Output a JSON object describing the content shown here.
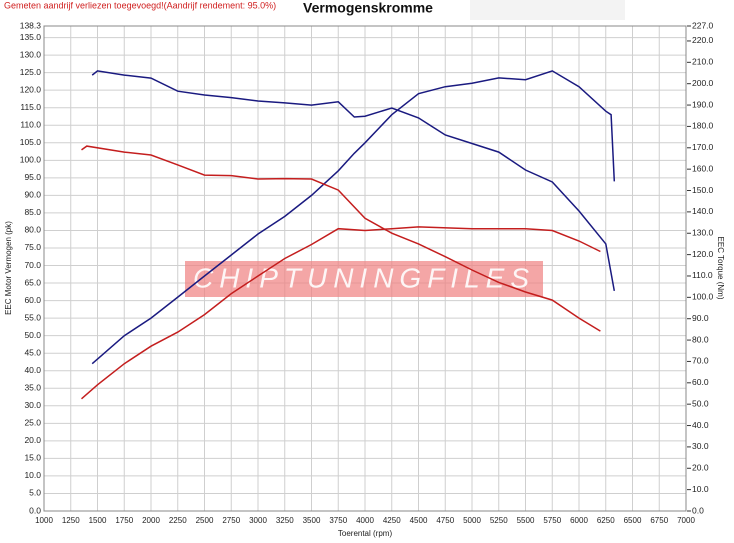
{
  "chart_data": {
    "type": "line",
    "title": "Vermogenskromme",
    "subtitle": "Gemeten aandrijf verliezen toegevoegd!(Aandrijf rendement: 95.0%)",
    "watermark": "CHIPTUNINGFILES",
    "x_label": "Toerental (rpm)",
    "y_label": "EEC Motor Vermogen (pk)",
    "y2_label": "EEC Torque (Nm)",
    "xlim": [
      1000,
      7000
    ],
    "xticks": [
      1000,
      1250,
      1500,
      1750,
      2000,
      2250,
      2500,
      2750,
      3000,
      3250,
      3500,
      3750,
      4000,
      4250,
      4500,
      4750,
      5000,
      5250,
      5500,
      5750,
      6000,
      6250,
      6500,
      6750,
      7000
    ],
    "ylim": [
      0,
      138.3
    ],
    "yticks": [
      {
        "value": 0,
        "label": "0.0"
      },
      {
        "value": 5,
        "label": "5.0"
      },
      {
        "value": 10,
        "label": "10.0"
      },
      {
        "value": 15,
        "label": "15.0"
      },
      {
        "value": 20,
        "label": "20.0"
      },
      {
        "value": 25,
        "label": "25.0"
      },
      {
        "value": 30,
        "label": "30.0"
      },
      {
        "value": 35,
        "label": "35.0"
      },
      {
        "value": 40,
        "label": "40.0"
      },
      {
        "value": 45,
        "label": "45.0"
      },
      {
        "value": 50,
        "label": "50.0"
      },
      {
        "value": 55,
        "label": "55.0"
      },
      {
        "value": 60,
        "label": "60.0"
      },
      {
        "value": 65,
        "label": "65.0"
      },
      {
        "value": 70,
        "label": "70.0"
      },
      {
        "value": 75,
        "label": "75.0"
      },
      {
        "value": 80,
        "label": "80.0"
      },
      {
        "value": 85,
        "label": "85.0"
      },
      {
        "value": 90,
        "label": "90.0"
      },
      {
        "value": 95,
        "label": "95.0"
      },
      {
        "value": 100,
        "label": "100.0"
      },
      {
        "value": 105,
        "label": "105.0"
      },
      {
        "value": 110,
        "label": "110.0"
      },
      {
        "value": 115,
        "label": "115.0"
      },
      {
        "value": 120,
        "label": "120.0"
      },
      {
        "value": 125,
        "label": "125.0"
      },
      {
        "value": 130,
        "label": "130.0"
      },
      {
        "value": 135,
        "label": "135.0"
      },
      {
        "value": 138.3,
        "label": "138.3"
      }
    ],
    "y2lim": [
      0,
      227
    ],
    "y2ticks": [
      {
        "value": 0,
        "label": "0.0"
      },
      {
        "value": 10,
        "label": "10.0"
      },
      {
        "value": 20,
        "label": "20.0"
      },
      {
        "value": 30,
        "label": "30.0"
      },
      {
        "value": 40,
        "label": "40.0"
      },
      {
        "value": 50,
        "label": "50.0"
      },
      {
        "value": 60,
        "label": "60.0"
      },
      {
        "value": 70,
        "label": "70.0"
      },
      {
        "value": 80,
        "label": "80.0"
      },
      {
        "value": 90,
        "label": "90.0"
      },
      {
        "value": 100,
        "label": "100.0"
      },
      {
        "value": 110,
        "label": "110.0"
      },
      {
        "value": 120,
        "label": "120.0"
      },
      {
        "value": 130,
        "label": "130.0"
      },
      {
        "value": 140,
        "label": "140.0"
      },
      {
        "value": 150,
        "label": "150.0"
      },
      {
        "value": 160,
        "label": "160.0"
      },
      {
        "value": 170,
        "label": "170.0"
      },
      {
        "value": 180,
        "label": "180.0"
      },
      {
        "value": 190,
        "label": "190.0"
      },
      {
        "value": 200,
        "label": "200.0"
      },
      {
        "value": 210,
        "label": "210.0"
      },
      {
        "value": 220,
        "label": "220.0"
      },
      {
        "value": 227,
        "label": "227.0"
      }
    ],
    "grid": true,
    "series": [
      {
        "color": "#1a1a80",
        "axis": "y",
        "x": [
          1450,
          1750,
          2000,
          2250,
          2500,
          2750,
          3000,
          3250,
          3500,
          3750,
          3900,
          4000,
          4250,
          4500,
          4750,
          5000,
          5250,
          5500,
          5750,
          6000,
          6250,
          6300,
          6330
        ],
        "values": [
          42,
          50,
          55,
          61,
          67,
          73,
          79,
          84,
          90,
          97,
          102,
          105,
          113,
          119,
          121,
          122,
          123.5,
          123,
          125.5,
          121,
          114,
          113,
          94
        ]
      },
      {
        "color": "#1a1a80",
        "axis": "y2",
        "x": [
          1450,
          1500,
          1750,
          2000,
          2250,
          2500,
          2750,
          3000,
          3250,
          3500,
          3750,
          3900,
          4000,
          4250,
          4500,
          4750,
          5000,
          5250,
          5500,
          5750,
          6000,
          6250,
          6330
        ],
        "values": [
          204,
          206,
          204,
          202.6,
          196.5,
          194.7,
          193.5,
          191.9,
          191,
          190,
          191.5,
          184.4,
          184.8,
          188.6,
          184,
          176,
          172,
          168,
          159.6,
          154,
          140.4,
          125,
          103
        ]
      },
      {
        "color": "#c41e1e",
        "axis": "y",
        "x": [
          1350,
          1500,
          1750,
          2000,
          2250,
          2500,
          2750,
          3000,
          3250,
          3500,
          3750,
          4000,
          4250,
          4500,
          5000,
          5500,
          5750,
          6000,
          6200
        ],
        "values": [
          32,
          36,
          42,
          47,
          51,
          56,
          62,
          67,
          72,
          76,
          80.5,
          80,
          80.5,
          81,
          80.5,
          80.5,
          80,
          77,
          74
        ]
      },
      {
        "color": "#c41e1e",
        "axis": "y2",
        "x": [
          1350,
          1400,
          1750,
          2000,
          2250,
          2500,
          2750,
          3000,
          3250,
          3500,
          3750,
          4000,
          4250,
          4500,
          4750,
          5000,
          5250,
          5500,
          5750,
          6000,
          6200
        ],
        "values": [
          169,
          170.8,
          168,
          166.6,
          162,
          157.2,
          157,
          155.4,
          155.6,
          155.4,
          150.2,
          137,
          130,
          125,
          119,
          112.8,
          107,
          102.5,
          98.7,
          90.3,
          84.2
        ]
      }
    ]
  }
}
